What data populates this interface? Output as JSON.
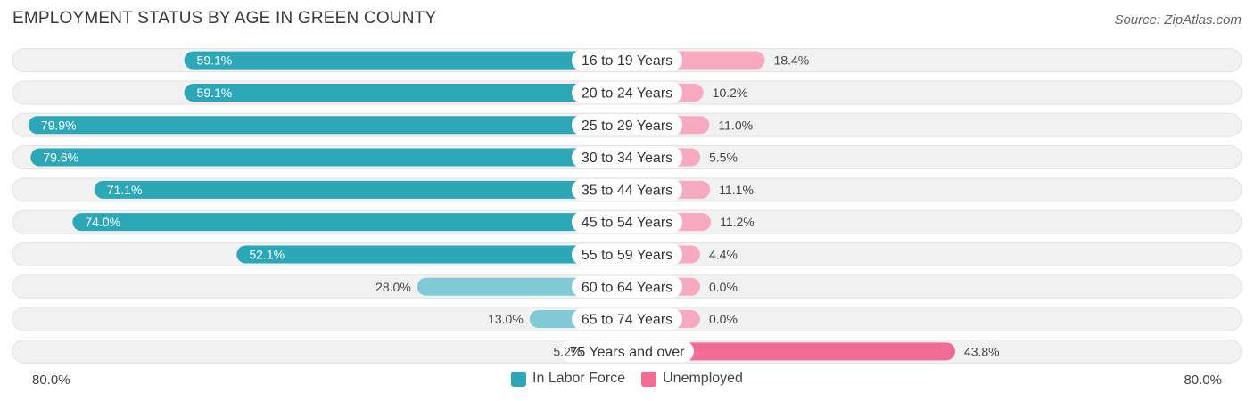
{
  "chart_data": {
    "type": "bar",
    "orientation": "horizontal-diverging",
    "title": "EMPLOYMENT STATUS BY AGE IN GREEN COUNTY",
    "source": "Source: ZipAtlas.com",
    "categories": [
      "16 to 19 Years",
      "20 to 24 Years",
      "25 to 29 Years",
      "30 to 34 Years",
      "35 to 44 Years",
      "45 to 54 Years",
      "55 to 59 Years",
      "60 to 64 Years",
      "65 to 74 Years",
      "75 Years and over"
    ],
    "series": [
      {
        "name": "In Labor Force",
        "values": [
          59.1,
          59.1,
          79.9,
          79.6,
          71.1,
          74.0,
          52.1,
          28.0,
          13.0,
          5.2
        ],
        "labels": [
          "59.1%",
          "59.1%",
          "79.9%",
          "79.6%",
          "71.1%",
          "74.0%",
          "52.1%",
          "28.0%",
          "13.0%",
          "5.2%"
        ]
      },
      {
        "name": "Unemployed",
        "values": [
          18.4,
          10.2,
          11.0,
          5.5,
          11.1,
          11.2,
          4.4,
          0.0,
          0.0,
          43.8
        ],
        "labels": [
          "18.4%",
          "10.2%",
          "11.0%",
          "5.5%",
          "11.1%",
          "11.2%",
          "4.4%",
          "0.0%",
          "0.0%",
          "43.8%"
        ]
      }
    ],
    "axis_range": [
      0,
      80
    ],
    "axis_left_label": "80.0%",
    "axis_right_label": "80.0%",
    "legend_position": "bottom-center",
    "colors": {
      "labor_dark": "#2ba7b8",
      "labor_light": "#7fcad4",
      "unemp_dark": "#f06b95",
      "unemp_light": "#f7a9c0",
      "track": "#f1f1f1",
      "track_border": "#e2e2e2"
    }
  }
}
